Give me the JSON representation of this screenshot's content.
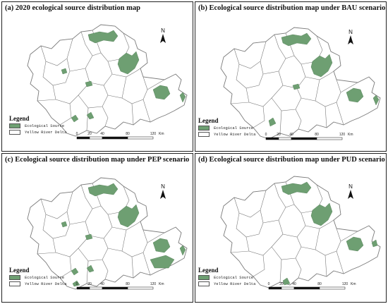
{
  "colors": {
    "ecological_source": "#6e9f72",
    "boundary": "#7a7a7a",
    "panel_border": "#222222"
  },
  "panels": [
    {
      "title": "(a) 2020 ecological source distribution map"
    },
    {
      "title": "(b) Ecological  source distribution map  under BAU scenario"
    },
    {
      "title": "(c) Ecological  source distribution map  under PEP scenario"
    },
    {
      "title": "(d) Ecological  source distribution map  under PUD scenario"
    }
  ],
  "legend": {
    "title": "Legend",
    "items": [
      "Ecological Source",
      "Yellow River Delta"
    ]
  },
  "north_label": "N",
  "scale": {
    "ticks": [
      "0",
      "20",
      "40",
      "80",
      "120"
    ],
    "unit": "Km"
  }
}
